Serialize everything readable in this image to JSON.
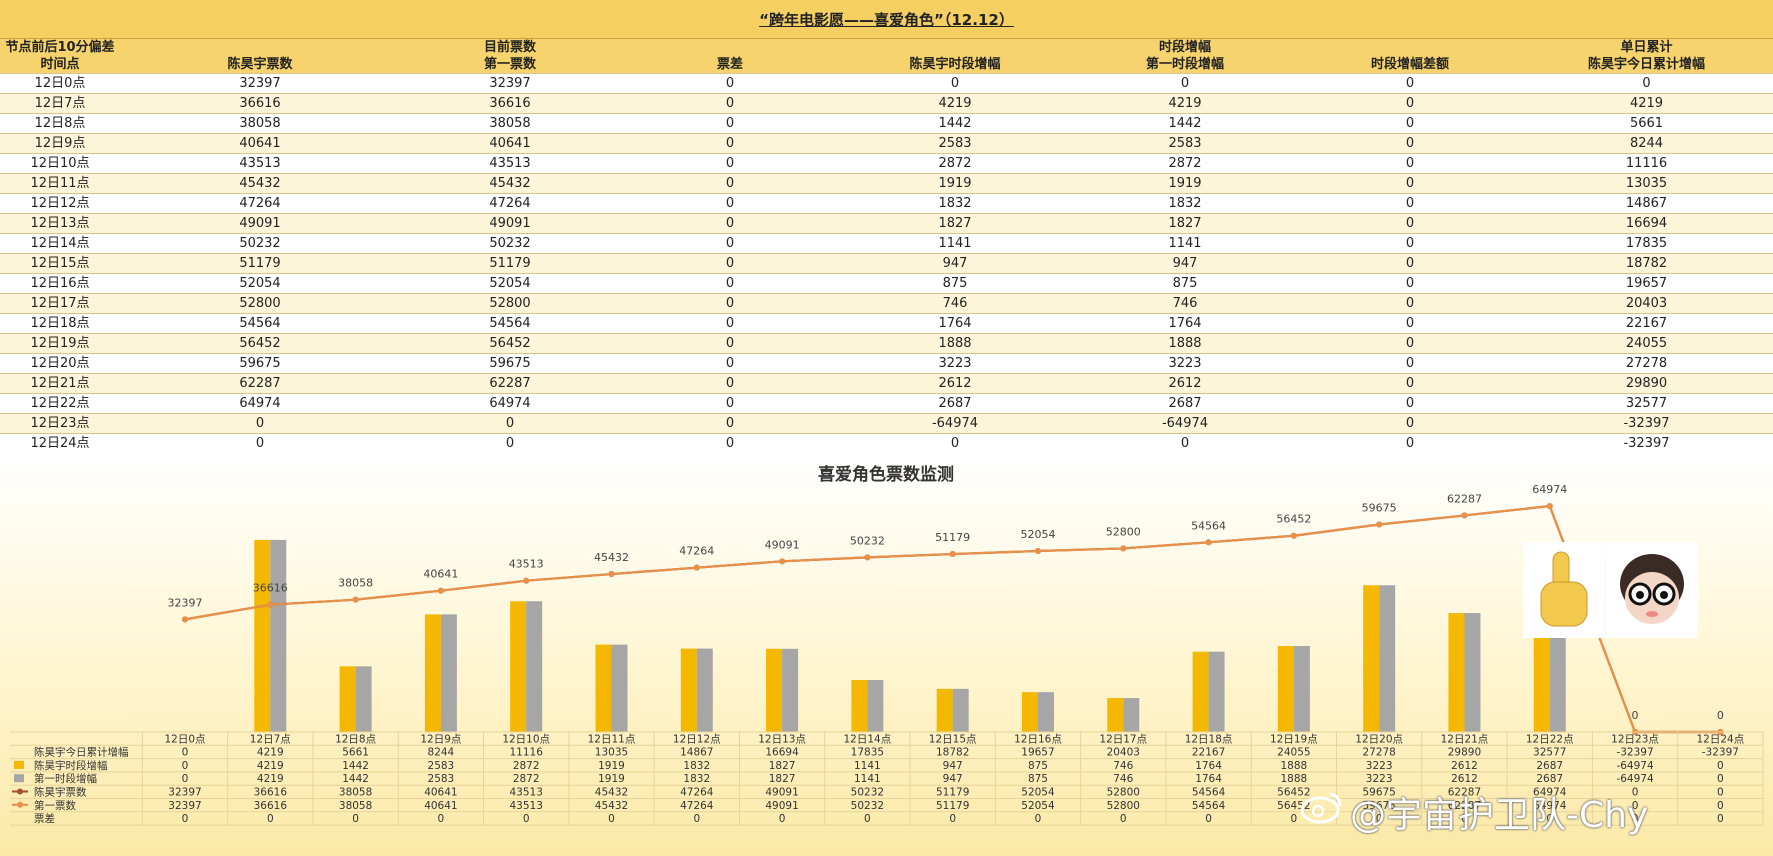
{
  "title": "“跨年电影愿——喜爱角色”（12.12）",
  "table": {
    "header_row1": [
      "节点前后10分偏差",
      "",
      "目前票数",
      "",
      "",
      "时段增幅",
      "",
      "单日累计"
    ],
    "header_row2": [
      "时间点",
      "陈昊宇票数",
      "第一票数",
      "票差",
      "陈昊宇时段增幅",
      "第一时段增幅",
      "时段增幅差额",
      "陈昊宇今日累计增幅"
    ],
    "rows": [
      [
        "12日0点",
        "32397",
        "32397",
        "0",
        "0",
        "0",
        "0",
        "0"
      ],
      [
        "12日7点",
        "36616",
        "36616",
        "0",
        "4219",
        "4219",
        "0",
        "4219"
      ],
      [
        "12日8点",
        "38058",
        "38058",
        "0",
        "1442",
        "1442",
        "0",
        "5661"
      ],
      [
        "12日9点",
        "40641",
        "40641",
        "0",
        "2583",
        "2583",
        "0",
        "8244"
      ],
      [
        "12日10点",
        "43513",
        "43513",
        "0",
        "2872",
        "2872",
        "0",
        "11116"
      ],
      [
        "12日11点",
        "45432",
        "45432",
        "0",
        "1919",
        "1919",
        "0",
        "13035"
      ],
      [
        "12日12点",
        "47264",
        "47264",
        "0",
        "1832",
        "1832",
        "0",
        "14867"
      ],
      [
        "12日13点",
        "49091",
        "49091",
        "0",
        "1827",
        "1827",
        "0",
        "16694"
      ],
      [
        "12日14点",
        "50232",
        "50232",
        "0",
        "1141",
        "1141",
        "0",
        "17835"
      ],
      [
        "12日15点",
        "51179",
        "51179",
        "0",
        "947",
        "947",
        "0",
        "18782"
      ],
      [
        "12日16点",
        "52054",
        "52054",
        "0",
        "875",
        "875",
        "0",
        "19657"
      ],
      [
        "12日17点",
        "52800",
        "52800",
        "0",
        "746",
        "746",
        "0",
        "20403"
      ],
      [
        "12日18点",
        "54564",
        "54564",
        "0",
        "1764",
        "1764",
        "0",
        "22167"
      ],
      [
        "12日19点",
        "56452",
        "56452",
        "0",
        "1888",
        "1888",
        "0",
        "24055"
      ],
      [
        "12日20点",
        "59675",
        "59675",
        "0",
        "3223",
        "3223",
        "0",
        "27278"
      ],
      [
        "12日21点",
        "62287",
        "62287",
        "0",
        "2612",
        "2612",
        "0",
        "29890"
      ],
      [
        "12日22点",
        "64974",
        "64974",
        "0",
        "2687",
        "2687",
        "0",
        "32577"
      ],
      [
        "12日23点",
        "0",
        "0",
        "0",
        "-64974",
        "-64974",
        "0",
        "-32397"
      ],
      [
        "12日24点",
        "0",
        "0",
        "0",
        "0",
        "0",
        "0",
        "-32397"
      ]
    ]
  },
  "chart_data": {
    "type": "bar",
    "title": "喜爱角色票数监测",
    "categories": [
      "12日0点",
      "12日7点",
      "12日8点",
      "12日9点",
      "12日10点",
      "12日11点",
      "12日12点",
      "12日13点",
      "12日14点",
      "12日15点",
      "12日16点",
      "12日17点",
      "12日18点",
      "12日19点",
      "12日20点",
      "12日21点",
      "12日22点",
      "12日23点",
      "12日24点"
    ],
    "series": [
      {
        "name": "陈昊宇今日累计增幅",
        "kind": "table-only",
        "values": [
          0,
          4219,
          5661,
          8244,
          11116,
          13035,
          14867,
          16694,
          17835,
          18782,
          19657,
          20403,
          22167,
          24055,
          27278,
          29890,
          32577,
          -32397,
          -32397
        ]
      },
      {
        "name": "陈昊宇时段增幅",
        "kind": "bar",
        "color": "#f5b800",
        "values": [
          0,
          4219,
          1442,
          2583,
          2872,
          1919,
          1832,
          1827,
          1141,
          947,
          875,
          746,
          1764,
          1888,
          3223,
          2612,
          2687,
          -64974,
          0
        ]
      },
      {
        "name": "第一时段增幅",
        "kind": "bar",
        "color": "#a6a6a6",
        "values": [
          0,
          4219,
          1442,
          2583,
          2872,
          1919,
          1832,
          1827,
          1141,
          947,
          875,
          746,
          1764,
          1888,
          3223,
          2612,
          2687,
          -64974,
          0
        ]
      },
      {
        "name": "陈昊宇票数",
        "kind": "line",
        "color": "#a0522d",
        "values": [
          32397,
          36616,
          38058,
          40641,
          43513,
          45432,
          47264,
          49091,
          50232,
          51179,
          52054,
          52800,
          54564,
          56452,
          59675,
          62287,
          64974,
          0,
          0
        ]
      },
      {
        "name": "第一票数",
        "kind": "line",
        "color": "#e8904a",
        "values": [
          32397,
          36616,
          38058,
          40641,
          43513,
          45432,
          47264,
          49091,
          50232,
          51179,
          52054,
          52800,
          54564,
          56452,
          59675,
          62287,
          64974,
          0,
          0
        ]
      },
      {
        "name": "票差",
        "kind": "table-only",
        "values": [
          0,
          0,
          0,
          0,
          0,
          0,
          0,
          0,
          0,
          0,
          0,
          0,
          0,
          0,
          0,
          0,
          0,
          0,
          0
        ]
      }
    ],
    "bar_ylim": [
      0,
      4700
    ],
    "line_ylim": [
      0,
      65000
    ],
    "legend": "bottom-table"
  },
  "watermark": "@宇宙护卫队-Chy"
}
